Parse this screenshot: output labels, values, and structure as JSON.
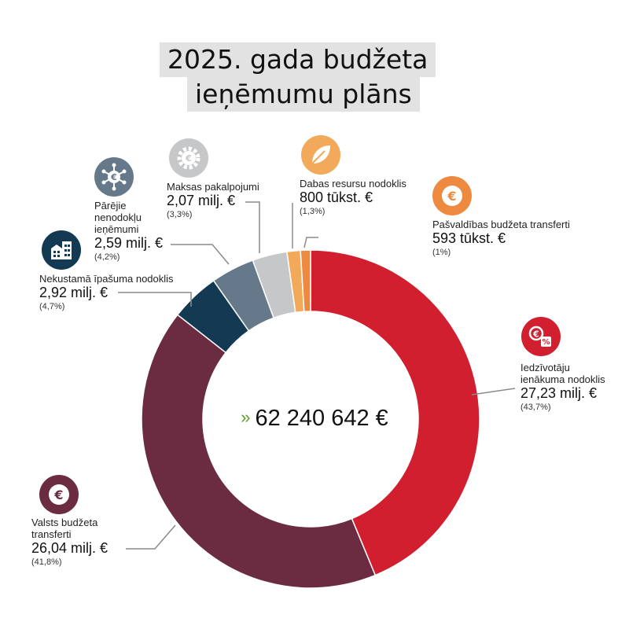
{
  "title": {
    "line1": "2025. gada budžeta",
    "line2": "ieņēmumu plāns"
  },
  "total": {
    "arrow": "»",
    "value": "62 240 642 €"
  },
  "chart_data": {
    "type": "pie",
    "title": "2025. gada budžeta ieņēmumu plāns",
    "total": 62240642,
    "unit": "milj. €",
    "slices": [
      {
        "name": "Iedzīvotāju ienākuma nodoklis",
        "value": 27.23,
        "value_label": "27,23 milj. €",
        "percent": 43.7,
        "percent_label": "(43,7%)",
        "color": "#d11f2f",
        "icon": "euro-percent-icon"
      },
      {
        "name": "Valsts budžeta transferti",
        "value": 26.04,
        "value_label": "26,04 milj. €",
        "percent": 41.8,
        "percent_label": "(41,8%)",
        "color": "#6b2b40",
        "icon": "euro-coin-icon"
      },
      {
        "name": "Nekustamā īpašuma nodoklis",
        "value": 2.92,
        "value_label": "2,92 milj. €",
        "percent": 4.7,
        "percent_label": "(4,7%)",
        "color": "#133a52",
        "icon": "buildings-icon"
      },
      {
        "name": "Pārējie nenodokļu ieņēmumi",
        "value": 2.59,
        "value_label": "2,59 milj. €",
        "percent": 4.2,
        "percent_label": "(4,2%)",
        "color": "#65798a",
        "icon": "euro-network-icon"
      },
      {
        "name": "Maksas pakalpojumi",
        "value": 2.07,
        "value_label": "2,07 milj. €",
        "percent": 3.3,
        "percent_label": "(3,3%)",
        "color": "#c5c7c9",
        "icon": "euro-gear-icon"
      },
      {
        "name": "Dabas resursu nodoklis",
        "value": 0.8,
        "value_label": "800 tūkst. €",
        "percent": 1.3,
        "percent_label": "(1,3%)",
        "color": "#f3a95a",
        "icon": "leaf-icon"
      },
      {
        "name": "Pašvaldības budžeta transferti",
        "value": 0.593,
        "value_label": "593 tūkst. €",
        "percent": 1.0,
        "percent_label": "(1%)",
        "color": "#ed8a3f",
        "icon": "euro-coin-icon"
      }
    ],
    "labels": {
      "iin": {
        "lines": [
          "Iedzīvotāju",
          "ienākuma nodoklis"
        ]
      },
      "vbt": {
        "lines": [
          "Valsts budžeta",
          "transferti"
        ]
      },
      "nin": {
        "lines": [
          "Nekustamā īpašuma nodoklis"
        ]
      },
      "pni": {
        "lines": [
          "Pārējie",
          "nenodokļu",
          "ieņēmumi"
        ]
      },
      "mp": {
        "lines": [
          "Maksas pakalpojumi"
        ]
      },
      "drn": {
        "lines": [
          "Dabas resursu nodoklis"
        ]
      },
      "pbt": {
        "lines": [
          "Pašvaldības budžeta transferti"
        ]
      }
    }
  }
}
